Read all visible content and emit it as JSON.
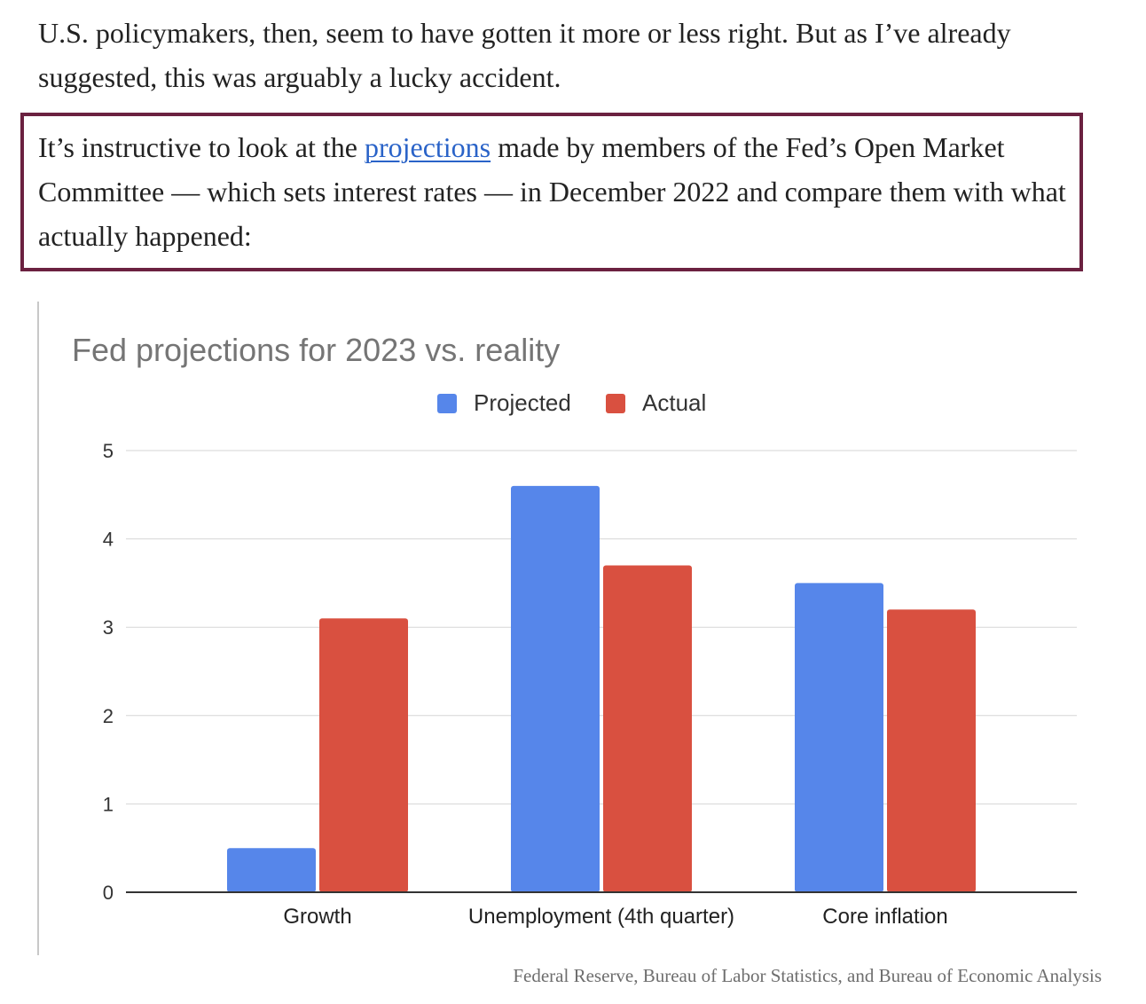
{
  "article": {
    "paragraph1": "U.S. policymakers, then, seem to have gotten it more or less right. But as I’ve already suggested, this was arguably a lucky accident.",
    "paragraph2_before": "It’s instructive to look at the ",
    "paragraph2_link": "projections",
    "paragraph2_after": " made by members of the Fed’s Open Market Committee — which sets interest rates — in December 2022 and compare them with what actually happened:",
    "highlight_color": "#6b2140",
    "link_color": "#2a63c8"
  },
  "chart_data": {
    "type": "bar",
    "title": "Fed projections for 2023 vs. reality",
    "xlabel": "",
    "ylabel": "",
    "categories": [
      "Growth",
      "Unemployment (4th quarter)",
      "Core inflation"
    ],
    "series": [
      {
        "name": "Projected",
        "color": "#5686ea",
        "values": [
          0.5,
          4.6,
          3.5
        ]
      },
      {
        "name": "Actual",
        "color": "#d95040",
        "values": [
          3.1,
          3.7,
          3.2
        ]
      }
    ],
    "ylim": [
      0,
      5
    ],
    "yticks": [
      "0",
      "1",
      "2",
      "3",
      "4",
      "5"
    ],
    "grid": true,
    "legend_position": "top-center"
  },
  "source": "Federal Reserve, Bureau of Labor Statistics, and Bureau of Economic Analysis"
}
